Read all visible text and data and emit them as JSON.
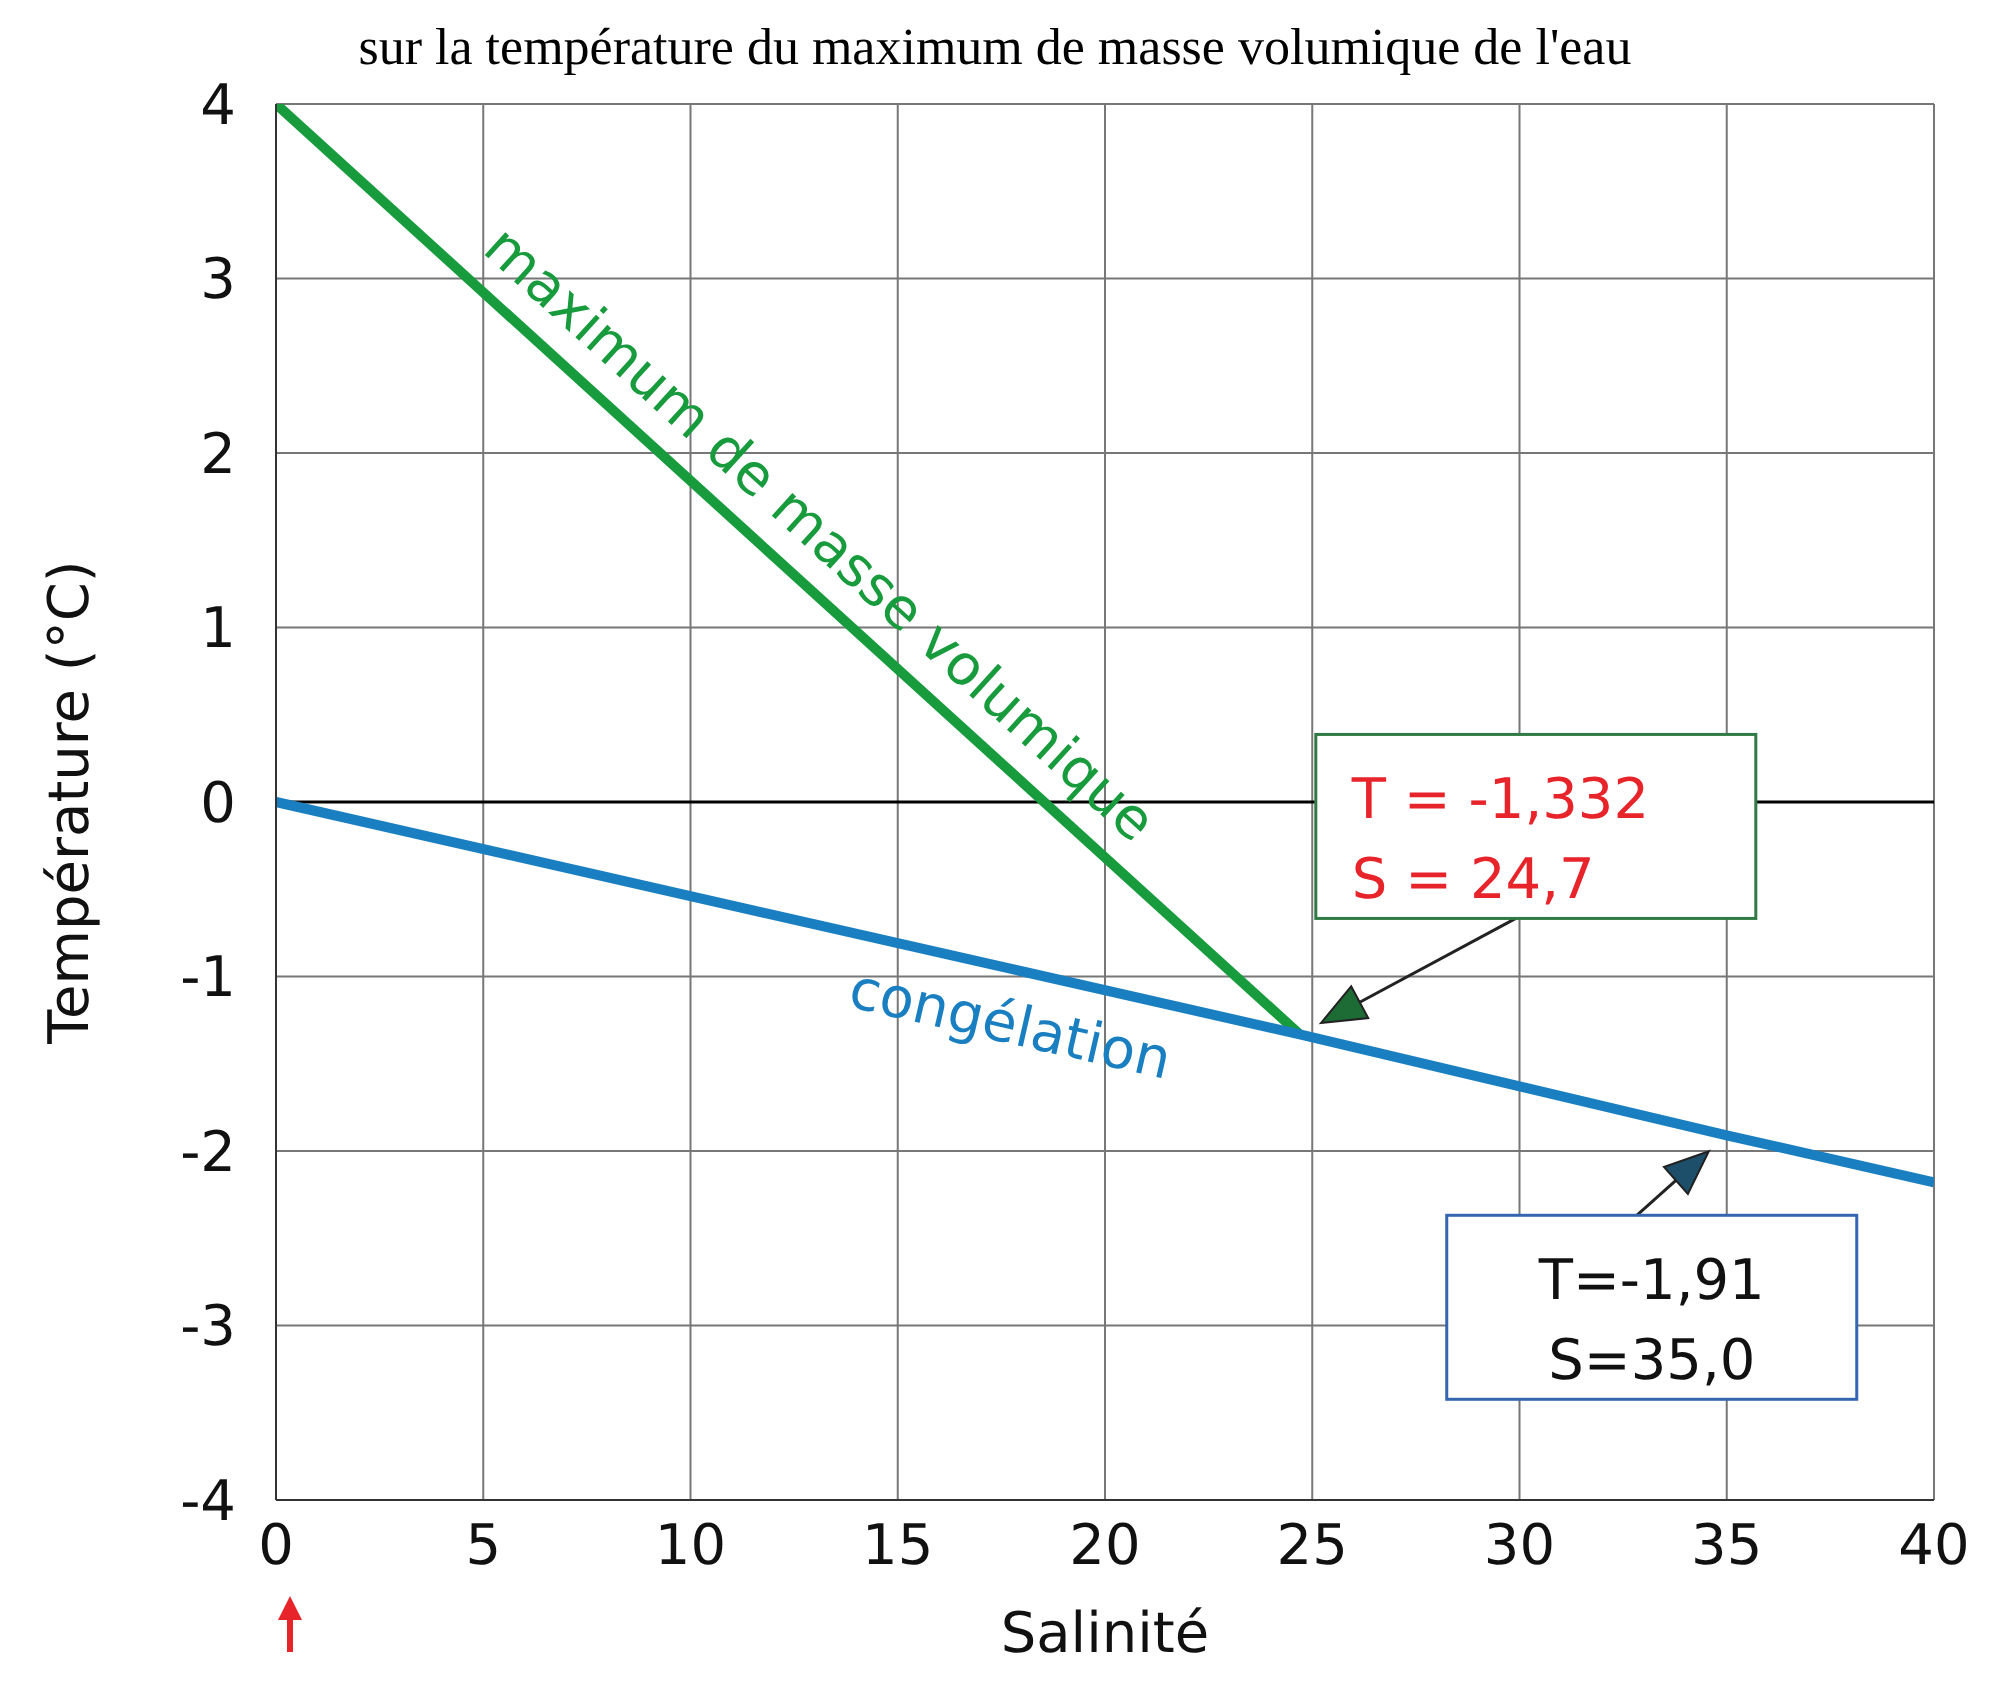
{
  "chart_data": {
    "type": "line",
    "title": "sur la température du maximum de masse volumique de l'eau",
    "xlabel": "Salinité",
    "ylabel": "Température (°C)",
    "series": [
      {
        "name": "maximum de masse volumique",
        "color": "#179b3c",
        "x": [
          0,
          24.7
        ],
        "values": [
          4,
          -1.332
        ]
      },
      {
        "name": "congélation",
        "color": "#1a7fc1",
        "x": [
          0,
          24.7,
          35,
          40
        ],
        "values": [
          0,
          -1.332,
          -1.91,
          -2.18
        ]
      }
    ],
    "annotations": [
      {
        "text": "T = -1,332\nS = 24,7",
        "x": 24.7,
        "y": -1.332
      },
      {
        "text": "T=-1,91\nS=35,0",
        "x": 35,
        "y": -1.91
      }
    ],
    "ref_lines": [
      {
        "axis": "y",
        "value": 0,
        "color": "#000000"
      }
    ],
    "xlim": [
      0,
      40
    ],
    "xticks": [
      0,
      5,
      10,
      15,
      20,
      25,
      30,
      35,
      40
    ],
    "ylim": [
      -4,
      4
    ],
    "yticks": [
      -4,
      -3,
      -2,
      -1,
      0,
      1,
      2,
      3,
      4
    ],
    "grid": true,
    "marker": "none",
    "line_style": "solid"
  }
}
